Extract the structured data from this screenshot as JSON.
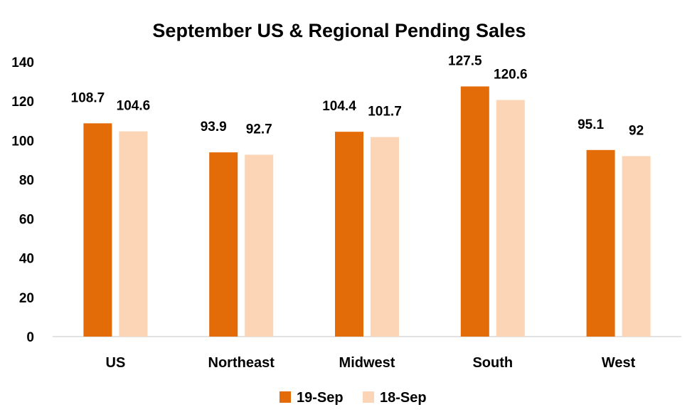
{
  "chart_data": {
    "type": "bar",
    "title": "September US & Regional Pending Sales",
    "xlabel": "",
    "ylabel": "",
    "categories": [
      "US",
      "Northeast",
      "Midwest",
      "South",
      "West"
    ],
    "series": [
      {
        "name": "19-Sep",
        "color": "#E36C09",
        "values": [
          108.7,
          93.9,
          104.4,
          127.5,
          95.1
        ]
      },
      {
        "name": "18-Sep",
        "color": "#FBD5B5",
        "values": [
          104.6,
          92.7,
          101.7,
          120.6,
          92
        ]
      }
    ],
    "data_labels": [
      [
        "108.7",
        "93.9",
        "104.4",
        "127.5",
        "95.1"
      ],
      [
        "104.6",
        "92.7",
        "101.7",
        "120.6",
        "92"
      ]
    ],
    "ylim": [
      0,
      140
    ],
    "yticks": [
      "0",
      "20",
      "40",
      "60",
      "80",
      "100",
      "120",
      "140"
    ],
    "grid": false,
    "legend_position": "bottom"
  }
}
